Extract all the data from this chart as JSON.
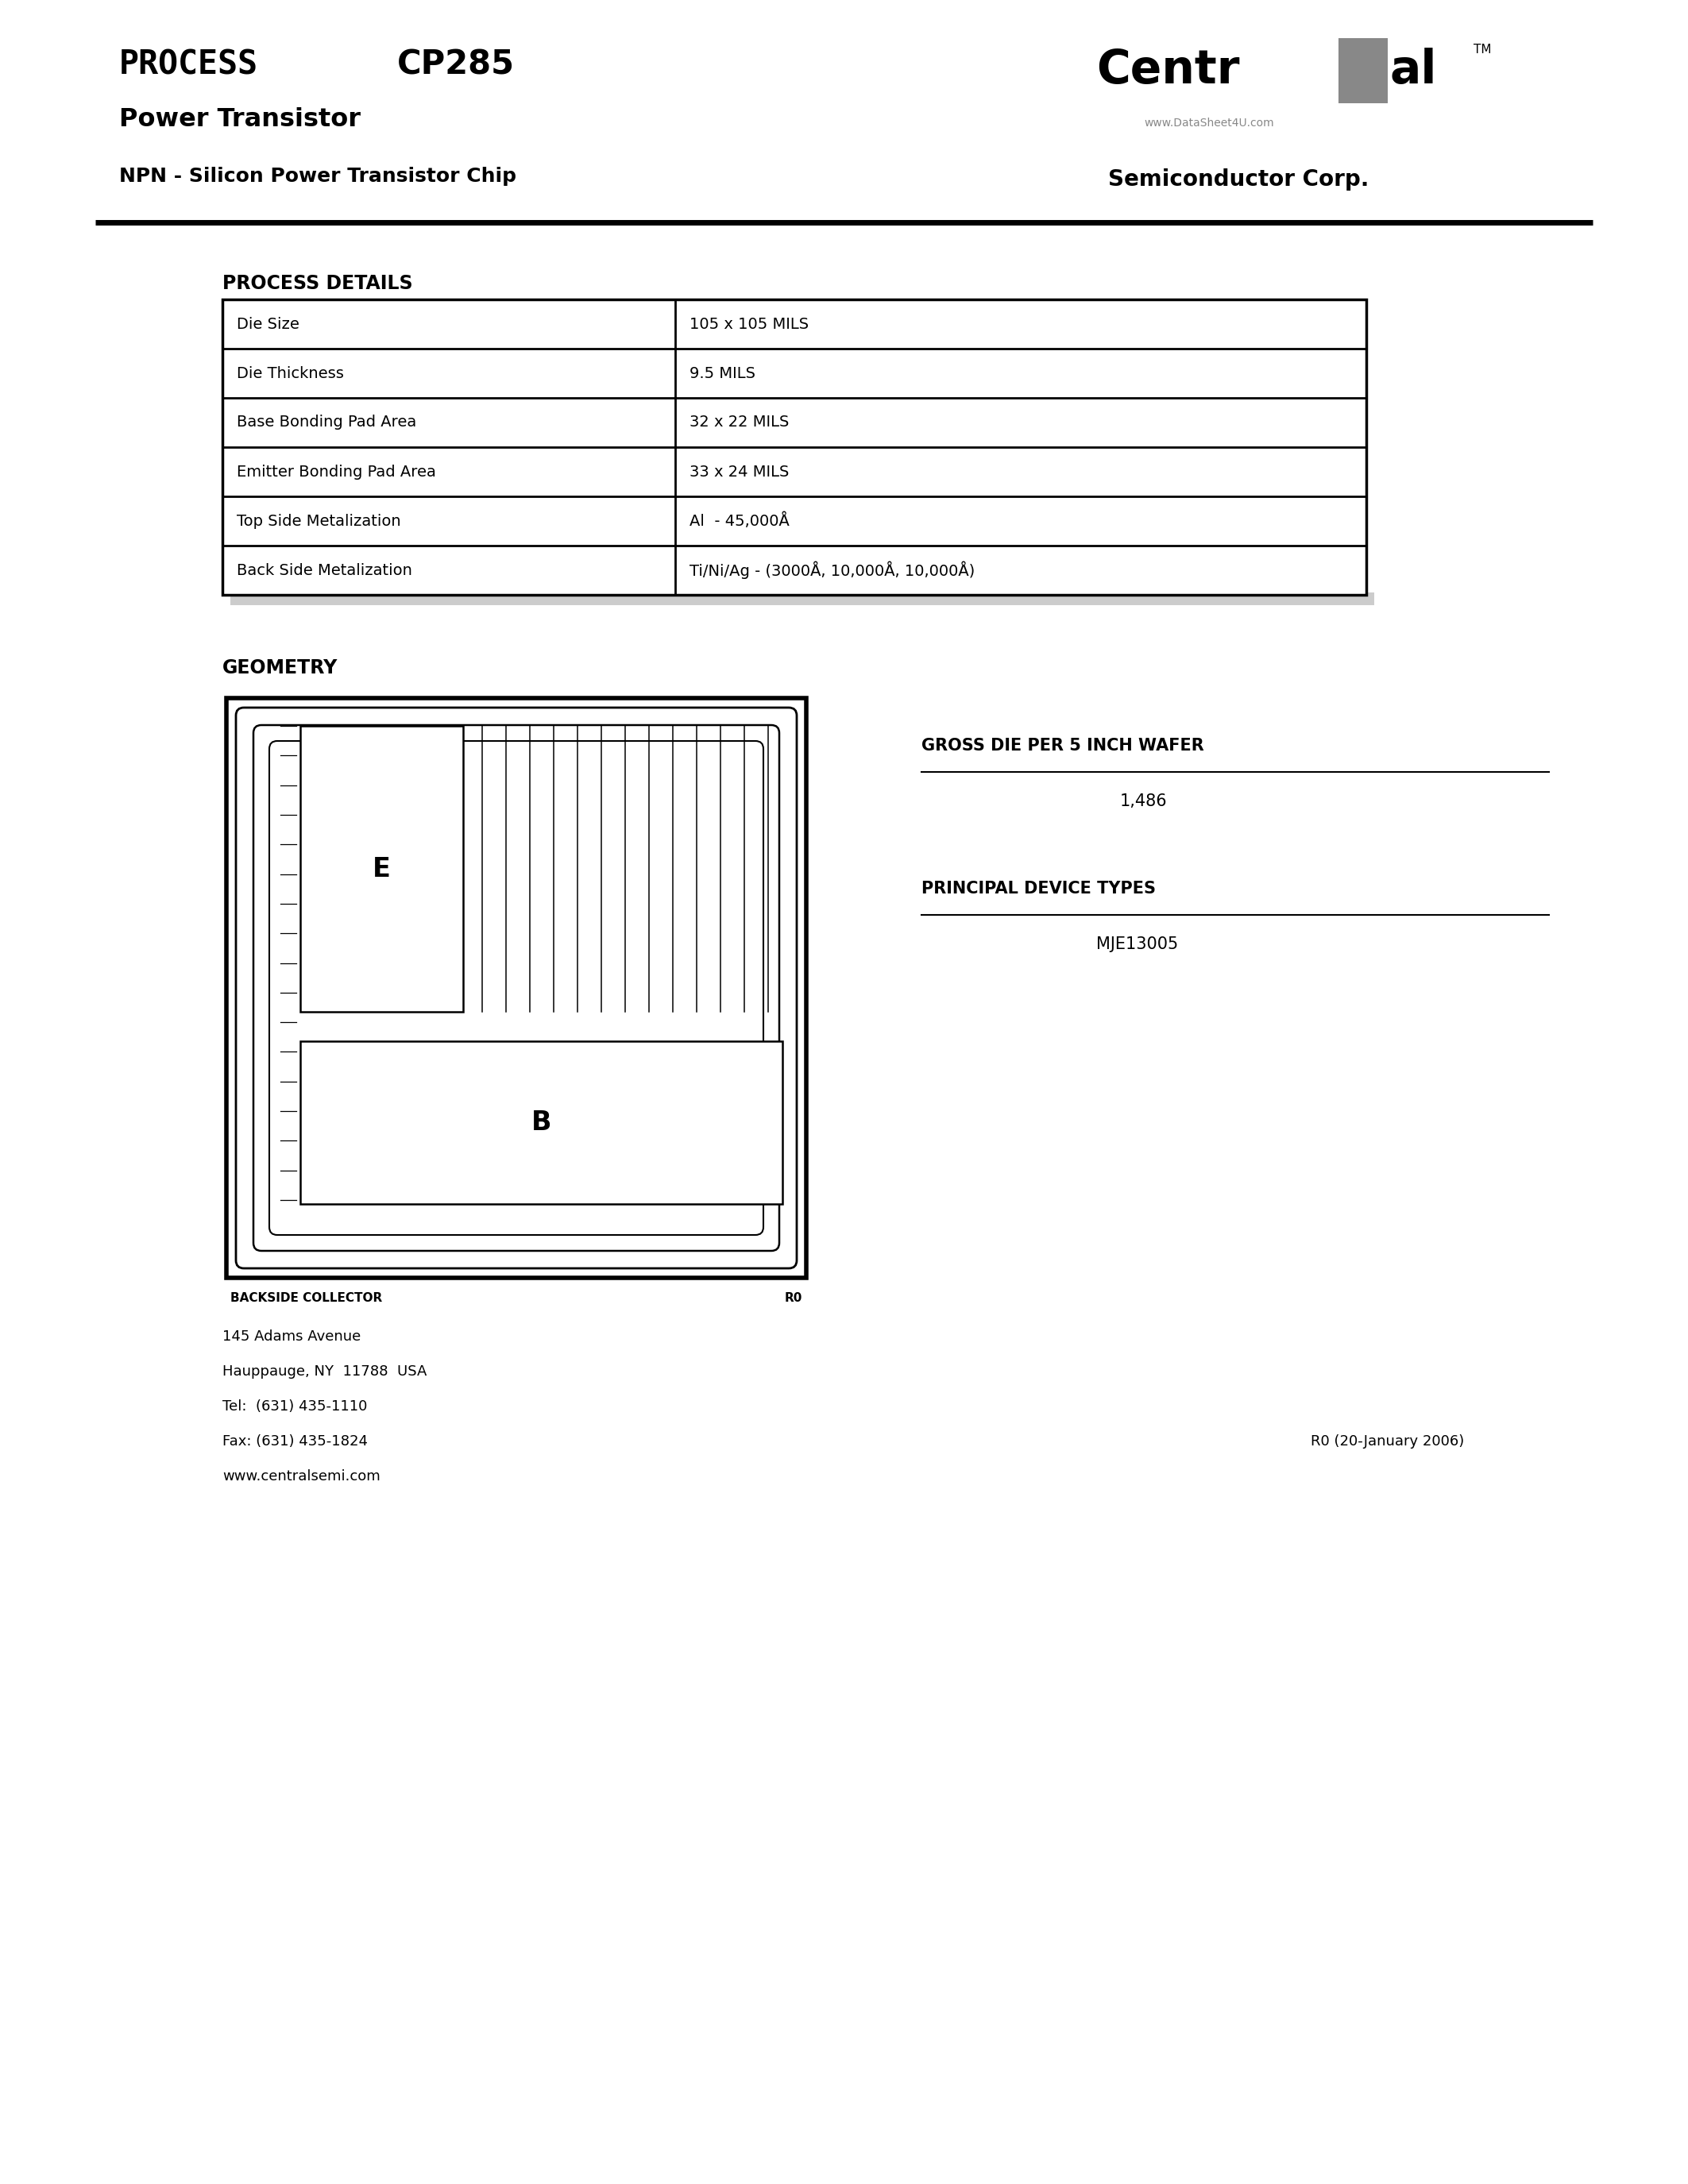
{
  "title_process": "PROCESS",
  "title_cp": "CP285",
  "subtitle1": "Power Transistor",
  "subtitle2": "NPN - Silicon Power Transistor Chip",
  "company_sub": "Semiconductor Corp.",
  "watermark": "www.DataSheet4U.com",
  "tm_symbol": "TM",
  "section_title": "PROCESS DETAILS",
  "table_rows": [
    [
      "Die Size",
      "105 x 105 MILS"
    ],
    [
      "Die Thickness",
      "9.5 MILS"
    ],
    [
      "Base Bonding Pad Area",
      "32 x 22 MILS"
    ],
    [
      "Emitter Bonding Pad Area",
      "33 x 24 MILS"
    ],
    [
      "Top Side Metalization",
      "Al  - 45,000Å"
    ],
    [
      "Back Side Metalization",
      "Ti/Ni/Ag - (3000Å, 10,000Å, 10,000Å)"
    ]
  ],
  "geometry_title": "GEOMETRY",
  "gross_die_title": "GROSS DIE PER 5 INCH WAFER",
  "gross_die_value": "1,486",
  "principal_title": "PRINCIPAL DEVICE TYPES",
  "principal_value": "MJE13005",
  "backside_label": "BACKSIDE COLLECTOR",
  "r0_label": "R0",
  "address_lines": [
    "145 Adams Avenue",
    "Hauppauge, NY  11788  USA",
    "Tel:  (631) 435-1110",
    "Fax: (631) 435-1824",
    "www.centralsemi.com"
  ],
  "revision": "R0 (20-January 2006)",
  "bg_color": "#ffffff",
  "text_color": "#000000"
}
